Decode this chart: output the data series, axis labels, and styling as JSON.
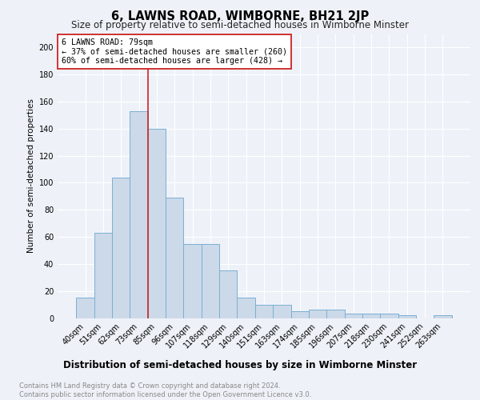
{
  "title": "6, LAWNS ROAD, WIMBORNE, BH21 2JP",
  "subtitle": "Size of property relative to semi-detached houses in Wimborne Minster",
  "xlabel": "Distribution of semi-detached houses by size in Wimborne Minster",
  "ylabel": "Number of semi-detached properties",
  "categories": [
    "40sqm",
    "51sqm",
    "62sqm",
    "73sqm",
    "85sqm",
    "96sqm",
    "107sqm",
    "118sqm",
    "129sqm",
    "140sqm",
    "151sqm",
    "163sqm",
    "174sqm",
    "185sqm",
    "196sqm",
    "207sqm",
    "218sqm",
    "230sqm",
    "241sqm",
    "252sqm",
    "263sqm"
  ],
  "values": [
    15,
    63,
    104,
    153,
    140,
    89,
    55,
    55,
    35,
    15,
    10,
    10,
    5,
    6,
    6,
    3,
    3,
    3,
    2,
    0,
    2
  ],
  "bar_color": "#ccd9e8",
  "bar_edge_color": "#7aafd4",
  "highlight_label": "6 LAWNS ROAD: 79sqm",
  "annotation_line1": "← 37% of semi-detached houses are smaller (260)",
  "annotation_line2": "60% of semi-detached houses are larger (428) →",
  "red_line_color": "#cc2222",
  "footer": "Contains HM Land Registry data © Crown copyright and database right 2024.\nContains public sector information licensed under the Open Government Licence v3.0.",
  "ylim": [
    0,
    210
  ],
  "background_color": "#eef2f8",
  "title_fontsize": 10.5,
  "subtitle_fontsize": 8.5,
  "tick_fontsize": 7,
  "ylabel_fontsize": 7.5,
  "xlabel_fontsize": 8.5
}
